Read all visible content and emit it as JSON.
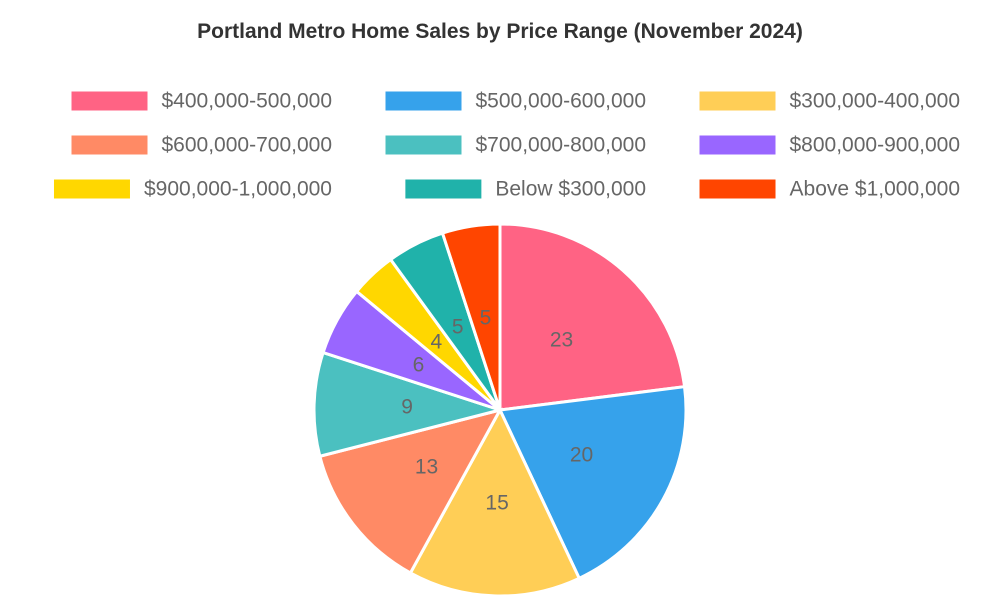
{
  "chart_data": {
    "type": "pie",
    "title": "Portland Metro Home Sales by Price Range (November 2024)",
    "categories": [
      "$400,000-500,000",
      "$500,000-600,000",
      "$300,000-400,000",
      "$600,000-700,000",
      "$700,000-800,000",
      "$800,000-900,000",
      "$900,000-1,000,000",
      "Below $300,000",
      "Above $1,000,000"
    ],
    "values": [
      23,
      20,
      15,
      13,
      9,
      6,
      4,
      5,
      5
    ],
    "colors": [
      "#FF6384",
      "#36A2EB",
      "#FFCE56",
      "#FF8A65",
      "#4BC0C0",
      "#9966FF",
      "#FFD700",
      "#20B2AA",
      "#FF4500"
    ],
    "legend_position": "top",
    "show_data_labels": true
  }
}
